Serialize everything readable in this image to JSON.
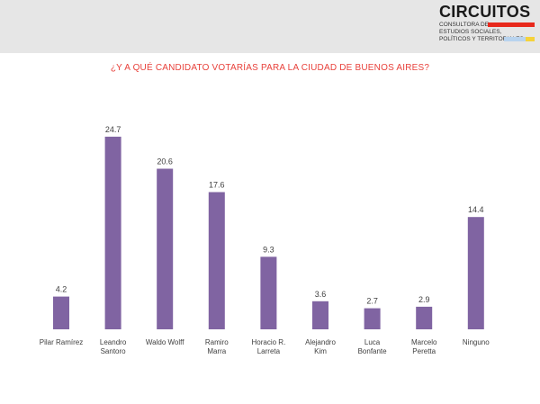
{
  "header": {
    "logo": {
      "name": "CIRCUITOS",
      "line1": "CONSULTORA DE",
      "line2": "ESTUDIOS SOCIALES,",
      "line3": "POLÍTICOS Y TERRITORIALES",
      "stripe_colors": [
        "#e8291c",
        "#b8d3ee",
        "#f5d23a"
      ]
    }
  },
  "chart_data": {
    "type": "bar",
    "title": "¿Y A QUÉ CANDIDATO VOTARÍAS PARA LA CIUDAD DE BUENOS AIRES?",
    "categories": [
      [
        "Pilar Ramírez"
      ],
      [
        "Leandro",
        "Santoro"
      ],
      [
        "Waldo Wolff"
      ],
      [
        "Ramiro",
        "Marra"
      ],
      [
        "Horacio R.",
        "Larreta"
      ],
      [
        "Alejandro",
        "Kim"
      ],
      [
        "Luca",
        "Bonfante"
      ],
      [
        "Marcelo",
        "Peretta"
      ],
      [
        "Ninguno"
      ]
    ],
    "values": [
      4.2,
      24.7,
      20.6,
      17.6,
      9.3,
      3.6,
      2.7,
      2.9,
      14.4
    ],
    "value_labels": [
      "4.2",
      "24.7",
      "20.6",
      "17.6",
      "9.3",
      "3.6",
      "2.7",
      "2.9",
      "14.4"
    ],
    "bar_color": "#8064a2",
    "title_color": "#e8413b",
    "ylim": [
      0,
      27
    ],
    "grid": false,
    "legend": "none"
  }
}
